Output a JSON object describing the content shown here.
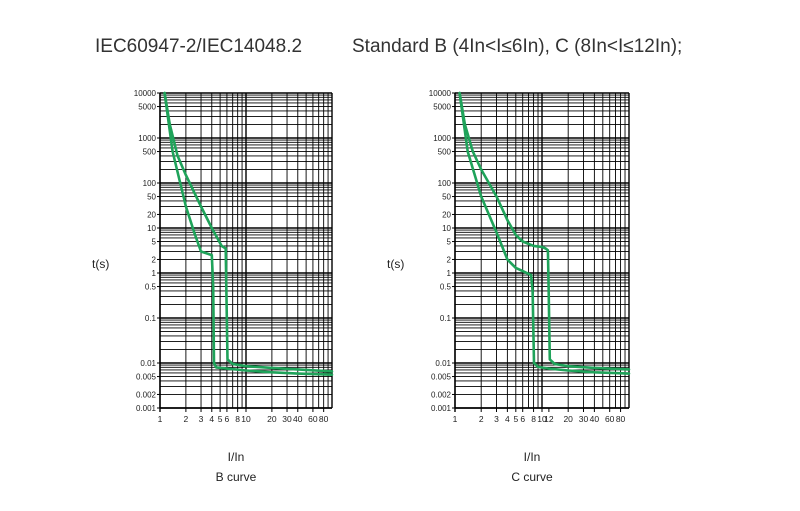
{
  "header": {
    "standard_left": "IEC60947-2/IEC14048.2",
    "standard_right": "Standard B (4In<I≤6In),   C (8In<I≤12In);"
  },
  "colors": {
    "curve": "#1fa35a",
    "grid": "#000000"
  },
  "chart_data": [
    {
      "type": "line",
      "title": "",
      "xlabel": "I/In",
      "ylabel": "t(s)",
      "caption": "B curve",
      "xscale": "log",
      "yscale": "log",
      "xlim": [
        1,
        100
      ],
      "ylim": [
        0.001,
        10000
      ],
      "grid": true,
      "x_ticks": [
        1,
        2,
        3,
        4,
        5,
        6,
        8,
        10,
        20,
        30,
        40,
        60,
        80
      ],
      "x_tick_labels": [
        "1",
        "2",
        "3",
        "4",
        "5",
        "6",
        "8",
        "10",
        "20",
        "30",
        "40",
        "60",
        "80"
      ],
      "y_ticks": [
        10000,
        5000,
        1000,
        500,
        100,
        50,
        20,
        10,
        5,
        2,
        1,
        0.5,
        0.1,
        0.01,
        0.005,
        0.002,
        0.001
      ],
      "y_tick_labels": [
        "10000",
        "5000",
        "1000",
        "500",
        "100",
        "50",
        "20",
        "10",
        "5",
        "2",
        "1",
        "0.5",
        "0.1",
        "0.01",
        "0.005",
        "0.002",
        "0.001"
      ],
      "series": [
        {
          "x": [
            1.13,
            1.3,
            1.6,
            2,
            3,
            4,
            5.2,
            5.8,
            5.9,
            6.1,
            7,
            10,
            20,
            40,
            100
          ],
          "y": [
            10000,
            2000,
            400,
            150,
            30,
            10,
            4,
            3.5,
            0.5,
            0.012,
            0.0095,
            0.0085,
            0.0078,
            0.0072,
            0.0065
          ]
        },
        {
          "x": [
            1.13,
            1.4,
            2,
            2.5,
            3,
            4,
            4.15,
            4.25,
            4.5,
            6,
            10,
            20,
            40,
            100
          ],
          "y": [
            10000,
            500,
            30,
            8,
            3,
            2.5,
            0.5,
            0.01,
            0.008,
            0.0075,
            0.0068,
            0.0062,
            0.0058,
            0.0055
          ]
        }
      ]
    },
    {
      "type": "line",
      "title": "",
      "xlabel": "I/In",
      "ylabel": "t(s)",
      "caption": "C curve",
      "xscale": "log",
      "yscale": "log",
      "xlim": [
        1,
        100
      ],
      "ylim": [
        0.001,
        10000
      ],
      "grid": true,
      "x_ticks": [
        1,
        2,
        3,
        4,
        5,
        6,
        8,
        10,
        12,
        20,
        30,
        40,
        60,
        80
      ],
      "x_tick_labels": [
        "1",
        "2",
        "3",
        "4",
        "5",
        "6",
        "8",
        "10",
        "12",
        "20",
        "30",
        "40",
        "60",
        "80"
      ],
      "y_ticks": [
        10000,
        5000,
        1000,
        500,
        100,
        50,
        20,
        10,
        5,
        2,
        1,
        0.5,
        0.1,
        0.01,
        0.005,
        0.002,
        0.001
      ],
      "y_tick_labels": [
        "10000",
        "5000",
        "1000",
        "500",
        "100",
        "50",
        "20",
        "10",
        "5",
        "2",
        "1",
        "0.5",
        "0.1",
        "0.01",
        "0.005",
        "0.002",
        "0.001"
      ],
      "series": [
        {
          "x": [
            1.13,
            1.3,
            1.6,
            2,
            3,
            4,
            5,
            6,
            8,
            10,
            11,
            11.7,
            11.9,
            12.3,
            14,
            20,
            40,
            100
          ],
          "y": [
            10000,
            2000,
            500,
            200,
            50,
            15,
            7,
            5,
            4,
            3.8,
            3.5,
            3.2,
            0.5,
            0.012,
            0.0095,
            0.0085,
            0.0078,
            0.0072
          ]
        },
        {
          "x": [
            1.13,
            1.4,
            2,
            3,
            4,
            5,
            6,
            7.5,
            7.8,
            8.1,
            9,
            12,
            20,
            40,
            100
          ],
          "y": [
            10000,
            500,
            50,
            8,
            2,
            1.3,
            1.1,
            0.9,
            0.4,
            0.01,
            0.0082,
            0.0075,
            0.0068,
            0.0062,
            0.0058
          ]
        }
      ]
    }
  ]
}
